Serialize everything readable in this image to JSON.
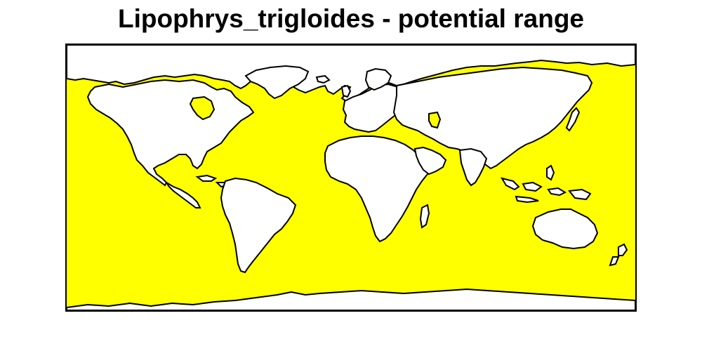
{
  "title": "Lipophrys_trigloides - potential range",
  "map": {
    "projection": "equirectangular",
    "extent": {
      "lon": [
        -180,
        180
      ],
      "lat": [
        -90,
        90
      ]
    },
    "colors": {
      "range_fill": "#ffff00",
      "land_fill": "#ffffff",
      "coastline": "#000000",
      "frame": "#000000",
      "background": "#ffffff"
    },
    "layers": [
      "potential-range-raster",
      "land-mask",
      "coastlines"
    ]
  }
}
